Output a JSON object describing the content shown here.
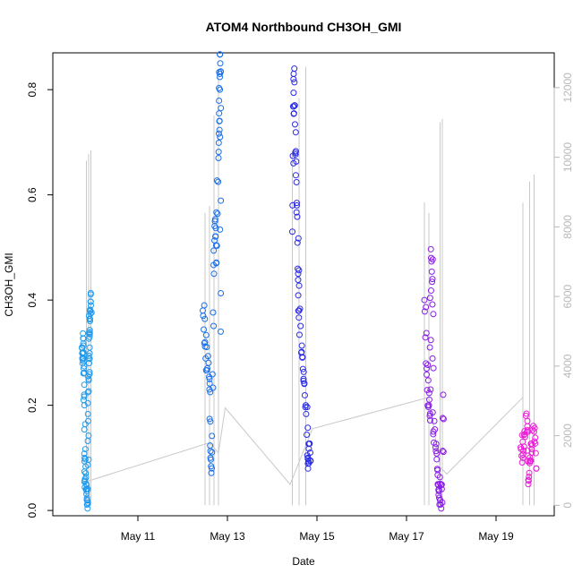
{
  "chart_data": {
    "type": "scatter",
    "title": "ATOM4 Northbound CH3OH_GMI",
    "xlabel": "Date",
    "ylabel": "CH3OH_GMI",
    "x_ticks": [
      "May 11",
      "May 13",
      "May 15",
      "May 17",
      "May 19"
    ],
    "x_tick_values": [
      11,
      13,
      15,
      17,
      19
    ],
    "xlim": [
      9.1,
      20.3
    ],
    "ylim": [
      -0.01,
      0.87
    ],
    "y_ticks": [
      0.0,
      0.2,
      0.4,
      0.6,
      0.8
    ],
    "y_tick_labels": [
      "0.0",
      "0.2",
      "0.4",
      "0.6",
      "0.8"
    ],
    "y2_ticks": [
      0,
      2000,
      4000,
      6000,
      8000,
      10000,
      12000
    ],
    "y2_tick_labels": [
      "0",
      "2000",
      "4000",
      "6000",
      "8000",
      "10000",
      "12000"
    ],
    "y2lim": [
      -300,
      13000
    ],
    "secondary_line_color": "#c8c8c8",
    "flights": [
      {
        "color": "#1e9bf0",
        "x_range": [
          9.75,
          9.95
        ],
        "sample_points": [
          [
            9.75,
            0.31
          ],
          [
            9.77,
            0.3
          ],
          [
            9.78,
            0.29
          ],
          [
            9.79,
            0.27
          ],
          [
            9.8,
            0.22
          ],
          [
            9.81,
            0.1
          ],
          [
            9.82,
            0.06
          ],
          [
            9.84,
            0.04
          ],
          [
            9.86,
            0.02
          ],
          [
            9.88,
            0.015
          ],
          [
            9.89,
            0.17
          ],
          [
            9.9,
            0.25
          ],
          [
            9.91,
            0.28
          ],
          [
            9.92,
            0.33
          ],
          [
            9.93,
            0.36
          ],
          [
            9.94,
            0.38
          ],
          [
            9.95,
            0.39
          ]
        ]
      },
      {
        "color": "#1a6fe8",
        "x_range": [
          12.45,
          12.85
        ],
        "sample_points": [
          [
            12.45,
            0.38
          ],
          [
            12.5,
            0.32
          ],
          [
            12.55,
            0.27
          ],
          [
            12.6,
            0.25
          ],
          [
            12.62,
            0.1
          ],
          [
            12.65,
            0.08
          ],
          [
            12.7,
            0.45
          ],
          [
            12.72,
            0.55
          ],
          [
            12.75,
            0.47
          ],
          [
            12.8,
            0.67
          ],
          [
            12.82,
            0.74
          ],
          [
            12.83,
            0.83
          ],
          [
            12.84,
            0.85
          ],
          [
            12.85,
            0.34
          ]
        ]
      },
      {
        "color": "#2a2ae6",
        "x_range": [
          14.45,
          14.85
        ],
        "sample_points": [
          [
            14.45,
            0.53
          ],
          [
            14.48,
            0.83
          ],
          [
            14.5,
            0.77
          ],
          [
            14.52,
            0.68
          ],
          [
            14.55,
            0.58
          ],
          [
            14.58,
            0.45
          ],
          [
            14.6,
            0.38
          ],
          [
            14.65,
            0.3
          ],
          [
            14.7,
            0.25
          ],
          [
            14.75,
            0.2
          ],
          [
            14.8,
            0.1
          ],
          [
            14.82,
            0.09
          ],
          [
            14.85,
            0.11
          ]
        ]
      },
      {
        "color": "#8a1ee6",
        "x_range": [
          17.35,
          17.85
        ],
        "sample_points": [
          [
            17.4,
            0.4
          ],
          [
            17.45,
            0.27
          ],
          [
            17.5,
            0.2
          ],
          [
            17.52,
            0.18
          ],
          [
            17.55,
            0.48
          ],
          [
            17.58,
            0.44
          ],
          [
            17.6,
            0.15
          ],
          [
            17.65,
            0.12
          ],
          [
            17.7,
            0.05
          ],
          [
            17.72,
            0.04
          ],
          [
            17.75,
            0.02
          ],
          [
            17.8,
            0.015
          ],
          [
            17.82,
            0.22
          ]
        ]
      },
      {
        "color": "#ea1ed6",
        "x_range": [
          19.55,
          19.9
        ],
        "sample_points": [
          [
            19.55,
            0.12
          ],
          [
            19.6,
            0.1
          ],
          [
            19.65,
            0.14
          ],
          [
            19.7,
            0.17
          ],
          [
            19.72,
            0.05
          ],
          [
            19.75,
            0.09
          ],
          [
            19.8,
            0.11
          ],
          [
            19.85,
            0.15
          ],
          [
            19.9,
            0.08
          ]
        ]
      }
    ],
    "altitude_series": {
      "axis": "right",
      "baseline_points": [
        [
          9.9,
          700
        ],
        [
          12.6,
          1800
        ],
        [
          12.8,
          1500
        ],
        [
          12.95,
          2800
        ],
        [
          14.4,
          600
        ],
        [
          14.9,
          2200
        ],
        [
          17.5,
          3100
        ],
        [
          17.75,
          1100
        ],
        [
          17.9,
          900
        ],
        [
          19.6,
          3100
        ]
      ],
      "spikes": [
        [
          9.85,
          9900
        ],
        [
          9.9,
          10100
        ],
        [
          9.95,
          10200
        ],
        [
          12.5,
          8400
        ],
        [
          12.6,
          8600
        ],
        [
          12.7,
          11200
        ],
        [
          12.8,
          12300
        ],
        [
          14.45,
          10200
        ],
        [
          14.6,
          11700
        ],
        [
          14.75,
          12600
        ],
        [
          17.4,
          8700
        ],
        [
          17.5,
          8400
        ],
        [
          17.75,
          11000
        ],
        [
          17.8,
          11100
        ],
        [
          19.6,
          8700
        ],
        [
          19.75,
          9300
        ],
        [
          19.85,
          9500
        ]
      ]
    }
  }
}
